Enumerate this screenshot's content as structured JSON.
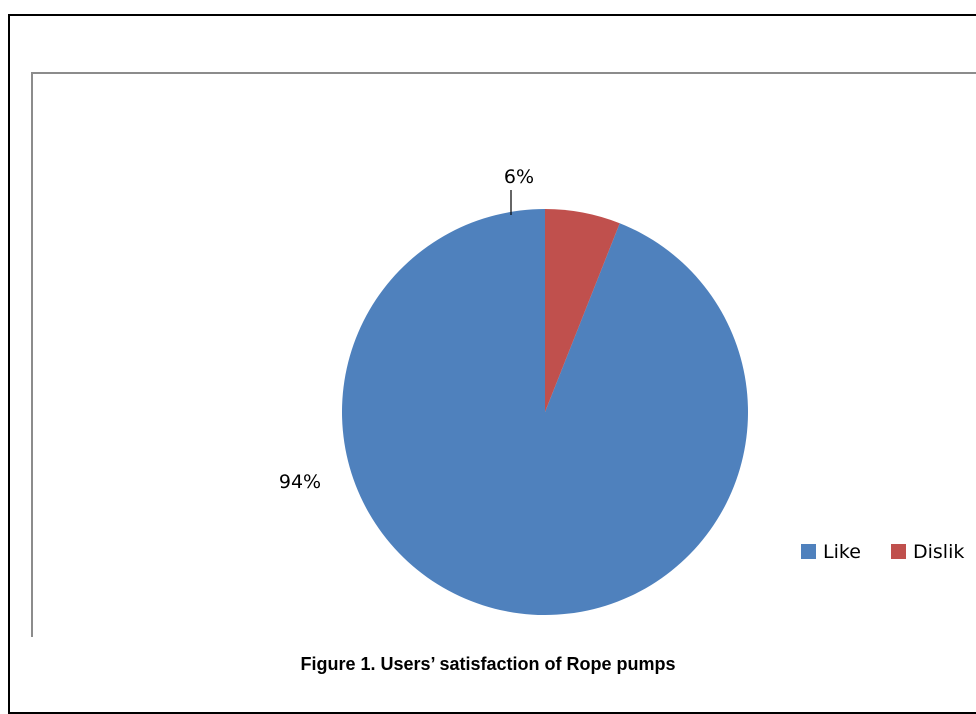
{
  "caption": "Figure 1. Users’ satisfaction of Rope pumps",
  "chart_data": {
    "type": "pie",
    "title": "",
    "slices": [
      {
        "label": "Like",
        "value": 94,
        "data_label": "94%",
        "color": "#4f81bd"
      },
      {
        "label": "Dislik",
        "value": 6,
        "data_label": "6%",
        "color": "#c0504d"
      }
    ],
    "legend": {
      "placement": "right",
      "entries": [
        "Like",
        "Dislik"
      ]
    }
  }
}
